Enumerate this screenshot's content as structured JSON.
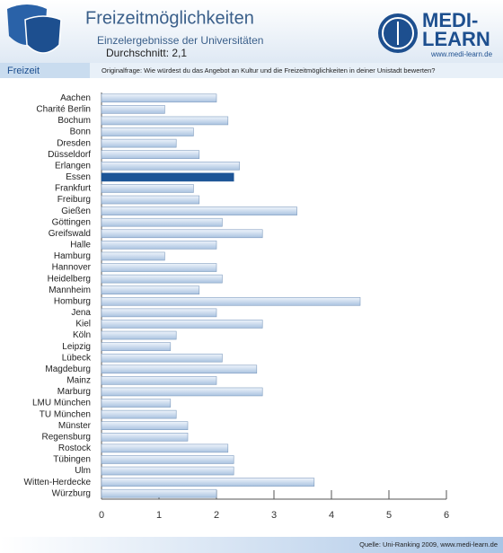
{
  "page": {
    "title": "Freizeitmöglichkeiten",
    "subtitle": "Einzelergebnisse der Universitäten",
    "average": "Durchschnitt: 2,1",
    "section": "Freizeit",
    "question": "Originalfrage: Wie würdest du das Angebot an Kultur und die Freizeitmöglichkeiten in deiner Unistadt bewerten?",
    "logo_top": "MEDI-",
    "logo_bottom": "LEARN",
    "logo_url": "www.medi-learn.de",
    "source": "Quelle: Uni-Ranking 2009, www.medi-learn.de"
  },
  "chart_data": {
    "type": "hbar",
    "categories": [
      "Aachen",
      "Charité  Berlin",
      "Bochum",
      "Bonn",
      "Dresden",
      "Düsseldorf",
      "Erlangen",
      "Essen",
      "Frankfurt",
      "Freiburg",
      "Gießen",
      "Göttingen",
      "Greifswald",
      "Halle",
      "Hamburg",
      "Hannover",
      "Heidelberg",
      "Mannheim",
      "Homburg",
      "Jena",
      "Kiel",
      "Köln",
      "Leipzig",
      "Lübeck",
      "Magdeburg",
      "Mainz",
      "Marburg",
      "LMU München",
      "TU München",
      "Münster",
      "Regensburg",
      "Rostock",
      "Tübingen",
      "Ulm",
      "Witten-Herdecke",
      "Würzburg"
    ],
    "values": [
      2.0,
      1.1,
      2.2,
      1.6,
      1.3,
      1.7,
      2.4,
      2.3,
      1.6,
      1.7,
      3.4,
      2.1,
      2.8,
      2.0,
      1.1,
      2.0,
      2.1,
      1.7,
      4.5,
      2.0,
      2.8,
      1.3,
      1.2,
      2.1,
      2.7,
      2.0,
      2.8,
      1.2,
      1.3,
      1.5,
      1.5,
      2.2,
      2.3,
      2.3,
      3.7,
      2.0
    ],
    "color": "#c9dcf0",
    "highlighted": "Essen",
    "highlight_color": "#1d5597",
    "xlim": [
      0,
      6
    ],
    "xticks": [
      0,
      1,
      2,
      3,
      4,
      5,
      6
    ]
  }
}
